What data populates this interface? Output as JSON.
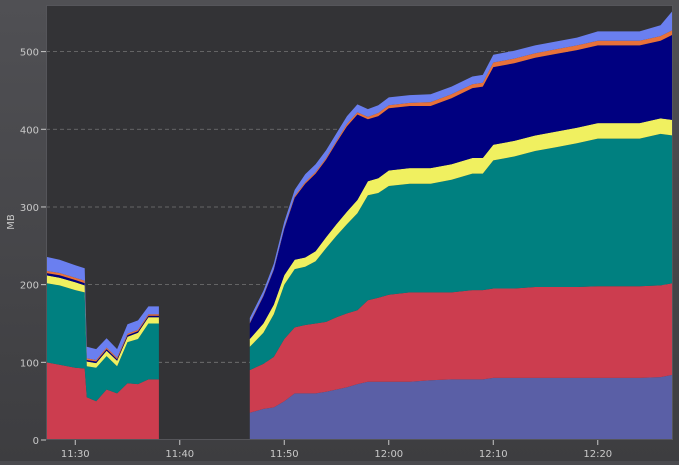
{
  "chart_data": {
    "type": "area",
    "stacked": true,
    "ylabel": "MB",
    "xlabel": "",
    "title": "",
    "y_ticks": [
      0,
      100,
      200,
      300,
      400,
      500
    ],
    "ylim": [
      0,
      560
    ],
    "x_ticks": [
      "11:30",
      "11:40",
      "11:50",
      "12:00",
      "12:10",
      "12:20"
    ],
    "x_tick_minutes": [
      570,
      580,
      590,
      600,
      610,
      620
    ],
    "xlim_minutes": [
      567.2,
      627.2
    ],
    "grid": "horizontal-dashed",
    "colors": {
      "background": "#333336",
      "frame": "#55555a",
      "grid": "#8a8a8a",
      "text": "#c8c8c8"
    },
    "segments": [
      {
        "x": [
          567.2,
          568.5,
          570,
          570.9,
          571.1,
          572,
          573,
          574,
          575,
          576,
          577,
          578
        ],
        "series": [
          {
            "name": "blue",
            "color": "#5a5fa6",
            "values": [
              0,
              0,
              0,
              0,
              0,
              0,
              0,
              0,
              0,
              0,
              0,
              0
            ]
          },
          {
            "name": "red",
            "color": "#cc3d4f",
            "values": [
              100,
              97,
              93,
              92,
              55,
              50,
              65,
              60,
              73,
              72,
              78,
              78
            ]
          },
          {
            "name": "teal",
            "color": "#008080",
            "values": [
              102,
              102,
              100,
              98,
              40,
              43,
              43,
              35,
              53,
              58,
              72,
              72
            ]
          },
          {
            "name": "yellow",
            "color": "#f0f060",
            "values": [
              10,
              10,
              10,
              9,
              6,
              6,
              7,
              7,
              7,
              8,
              8,
              8
            ]
          },
          {
            "name": "navy",
            "color": "#000080",
            "values": [
              3,
              3,
              3,
              3,
              2,
              2,
              2,
              2,
              2,
              2,
              2,
              2
            ]
          },
          {
            "name": "orange",
            "color": "#e8713a",
            "values": [
              3,
              3,
              3,
              3,
              2,
              2,
              2,
              2,
              2,
              2,
              2,
              2
            ]
          },
          {
            "name": "lightblue",
            "color": "#6a7ff0",
            "values": [
              18,
              17,
              16,
              16,
              15,
              14,
              12,
              11,
              12,
              12,
              10,
              10
            ]
          }
        ]
      },
      {
        "x": [
          586.7,
          588,
          589,
          590,
          591,
          592,
          593,
          594,
          595,
          596,
          597,
          598,
          599,
          600,
          602,
          604,
          606,
          608,
          609,
          610,
          612,
          614,
          616,
          618,
          620,
          622,
          624,
          626,
          627.2
        ],
        "series": [
          {
            "name": "blue",
            "color": "#5a5fa6",
            "values": [
              35,
              40,
              42,
              50,
              60,
              60,
              60,
              62,
              65,
              68,
              72,
              75,
              75,
              75,
              75,
              77,
              78,
              78,
              78,
              80,
              80,
              80,
              80,
              80,
              80,
              80,
              80,
              81,
              84
            ]
          },
          {
            "name": "red",
            "color": "#cc3d4f",
            "values": [
              55,
              58,
              65,
              80,
              85,
              88,
              90,
              90,
              93,
              95,
              95,
              105,
              108,
              112,
              115,
              113,
              112,
              115,
              115,
              115,
              115,
              117,
              117,
              117,
              118,
              118,
              118,
              118,
              118
            ]
          },
          {
            "name": "teal",
            "color": "#008080",
            "values": [
              30,
              40,
              55,
              70,
              75,
              75,
              80,
              95,
              105,
              115,
              125,
              135,
              135,
              140,
              140,
              140,
              145,
              150,
              150,
              165,
              170,
              175,
              180,
              185,
              190,
              190,
              190,
              195,
              190
            ]
          },
          {
            "name": "yellow",
            "color": "#f0f060",
            "values": [
              10,
              12,
              12,
              12,
              12,
              12,
              13,
              14,
              15,
              16,
              17,
              18,
              19,
              20,
              20,
              20,
              20,
              20,
              20,
              20,
              20,
              20,
              20,
              20,
              20,
              20,
              20,
              20,
              20
            ]
          },
          {
            "name": "navy",
            "color": "#000080",
            "values": [
              20,
              35,
              45,
              60,
              80,
              95,
              100,
              100,
              105,
              110,
              110,
              80,
              80,
              80,
              80,
              80,
              85,
              90,
              92,
              100,
              100,
              100,
              100,
              100,
              100,
              100,
              100,
              100,
              110
            ]
          },
          {
            "name": "orange",
            "color": "#e8713a",
            "values": [
              1,
              1,
              1,
              1,
              2,
              2,
              2,
              2,
              2,
              3,
              3,
              3,
              4,
              4,
              4,
              5,
              5,
              5,
              5,
              6,
              6,
              6,
              6,
              6,
              6,
              6,
              6,
              6,
              6
            ]
          },
          {
            "name": "lightblue",
            "color": "#6a7ff0",
            "values": [
              6,
              6,
              7,
              8,
              8,
              10,
              10,
              10,
              10,
              10,
              10,
              10,
              10,
              10,
              10,
              10,
              10,
              10,
              10,
              10,
              10,
              10,
              10,
              10,
              12,
              12,
              12,
              14,
              25
            ]
          }
        ]
      }
    ]
  }
}
